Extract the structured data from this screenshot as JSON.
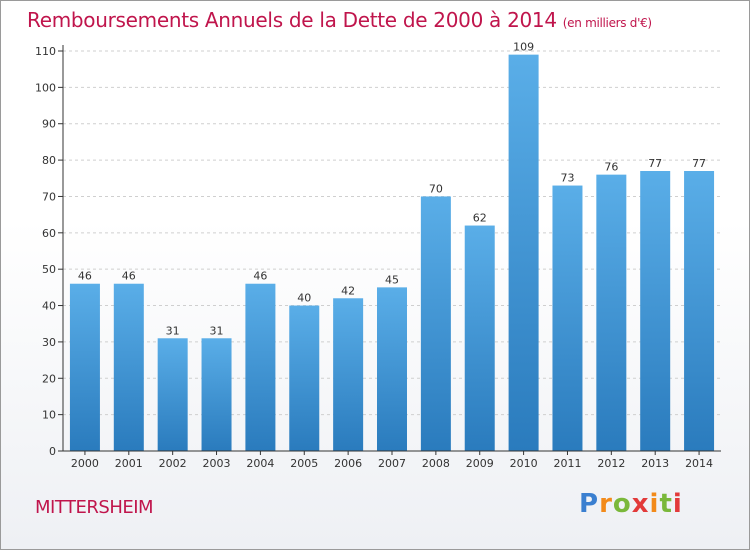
{
  "header": {
    "title": "Remboursements Annuels de la Dette de 2000 à 2014",
    "unit": "(en milliers d'€)"
  },
  "footer": {
    "commune": "MITTERSHEIM",
    "logo": "Proxiti"
  },
  "colors": {
    "title": "#c0154c",
    "bar_top": "#5aaee8",
    "bar_bottom": "#2a7bbd",
    "axis": "#333333",
    "grid": "#cfcfcf"
  },
  "chart_data": {
    "type": "bar",
    "title": "Remboursements Annuels de la Dette de 2000 à 2014",
    "subtitle": "(en milliers d'€)",
    "xlabel": "",
    "ylabel": "",
    "categories": [
      "2000",
      "2001",
      "2002",
      "2003",
      "2004",
      "2005",
      "2006",
      "2007",
      "2008",
      "2009",
      "2010",
      "2011",
      "2012",
      "2013",
      "2014"
    ],
    "values": [
      46,
      46,
      31,
      31,
      46,
      40,
      42,
      45,
      70,
      62,
      109,
      73,
      76,
      77,
      77
    ],
    "ylim": [
      0,
      110
    ],
    "yticks": [
      0,
      10,
      20,
      30,
      40,
      50,
      60,
      70,
      80,
      90,
      100,
      110
    ],
    "grid": "horizontal dashed",
    "legend": "none"
  }
}
